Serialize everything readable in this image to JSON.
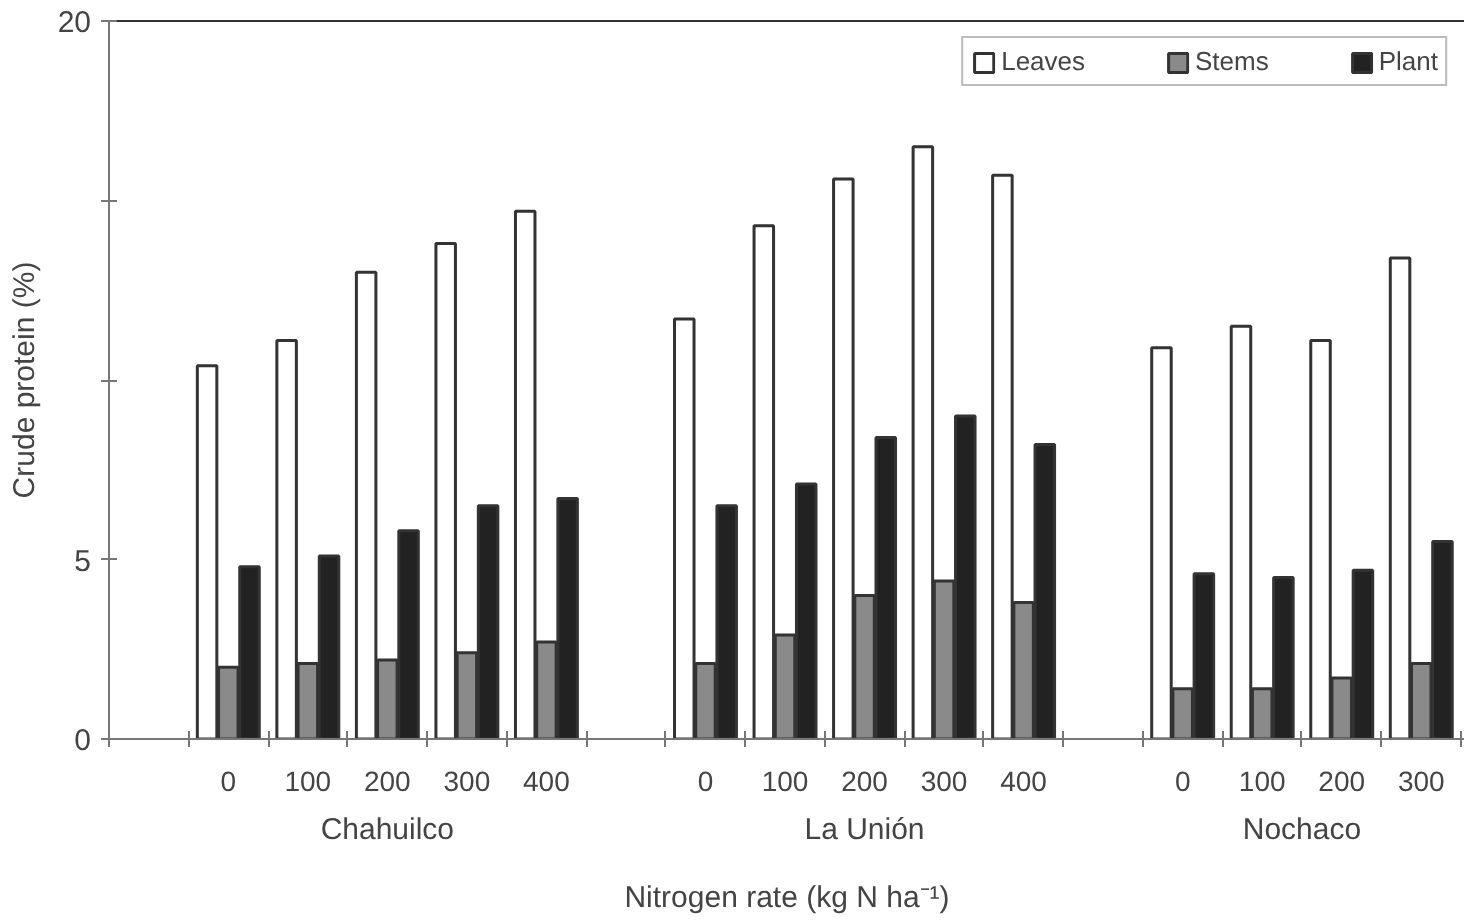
{
  "chart_data": {
    "type": "bar",
    "xlabel": "Nitrogen rate (kg N ha⁻¹)",
    "ylabel": "Crude protein (%)",
    "categories": [
      null,
      "0",
      "100",
      "200",
      "300",
      "400",
      null,
      "0",
      "100",
      "200",
      "300",
      "400",
      null,
      "0",
      "100",
      "200",
      "300"
    ],
    "series": [
      {
        "name": "Leaves",
        "color": "#ffffff",
        "values": [
          null,
          10.4,
          11.1,
          13.0,
          13.8,
          14.7,
          null,
          11.7,
          14.3,
          15.6,
          16.5,
          15.7,
          null,
          10.9,
          11.5,
          11.1,
          13.4
        ]
      },
      {
        "name": "Stems",
        "color": "#8a8a8a",
        "values": [
          null,
          2.0,
          2.1,
          2.2,
          2.4,
          2.7,
          null,
          2.1,
          2.9,
          4.0,
          4.4,
          3.8,
          null,
          1.4,
          1.4,
          1.7,
          2.1
        ]
      },
      {
        "name": "Plant",
        "color": "#222222",
        "values": [
          null,
          4.8,
          5.1,
          5.8,
          6.5,
          6.7,
          null,
          6.5,
          7.1,
          8.4,
          9.0,
          8.2,
          null,
          4.6,
          4.5,
          4.7,
          5.5
        ]
      }
    ],
    "ylim": [
      0,
      20
    ],
    "yticks": [
      0,
      5,
      {
        "value": 10,
        "label": null
      },
      {
        "value": 15,
        "label": null
      },
      20
    ],
    "annotations": [
      "Chahuilco",
      "La Unión",
      "Nochaco"
    ],
    "legend": "top right",
    "grid": false
  }
}
